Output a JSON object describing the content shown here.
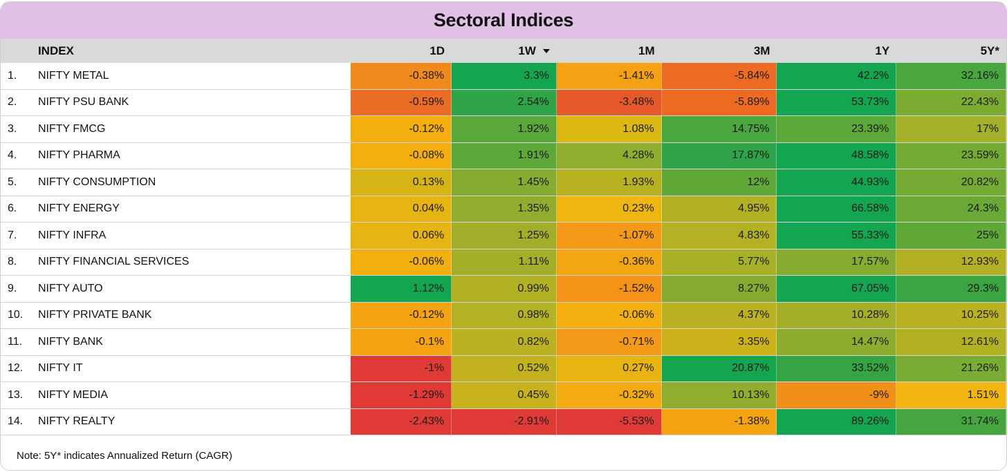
{
  "title": "Sectoral Indices",
  "headers": {
    "index": "INDEX",
    "d1": "1D",
    "w1": "1W",
    "m1": "1M",
    "m3": "3M",
    "y1": "1Y",
    "y5": "5Y*"
  },
  "sort_icon": "caret-down-icon",
  "rows": [
    {
      "num": "1.",
      "name": "NIFTY METAL",
      "d1": "-0.38%",
      "w1": "3.3%",
      "m1": "-1.41%",
      "m3": "-5.84%",
      "y1": "42.2%",
      "y5": "32.16%"
    },
    {
      "num": "2.",
      "name": "NIFTY PSU BANK",
      "d1": "-0.59%",
      "w1": "2.54%",
      "m1": "-3.48%",
      "m3": "-5.89%",
      "y1": "53.73%",
      "y5": "22.43%"
    },
    {
      "num": "3.",
      "name": "NIFTY FMCG",
      "d1": "-0.12%",
      "w1": "1.92%",
      "m1": "1.08%",
      "m3": "14.75%",
      "y1": "23.39%",
      "y5": "17%"
    },
    {
      "num": "4.",
      "name": "NIFTY PHARMA",
      "d1": "-0.08%",
      "w1": "1.91%",
      "m1": "4.28%",
      "m3": "17.87%",
      "y1": "48.58%",
      "y5": "23.59%"
    },
    {
      "num": "5.",
      "name": "NIFTY CONSUMPTION",
      "d1": "0.13%",
      "w1": "1.45%",
      "m1": "1.93%",
      "m3": "12%",
      "y1": "44.93%",
      "y5": "20.82%"
    },
    {
      "num": "6.",
      "name": "NIFTY ENERGY",
      "d1": "0.04%",
      "w1": "1.35%",
      "m1": "0.23%",
      "m3": "4.95%",
      "y1": "66.58%",
      "y5": "24.3%"
    },
    {
      "num": "7.",
      "name": "NIFTY INFRA",
      "d1": "0.06%",
      "w1": "1.25%",
      "m1": "-1.07%",
      "m3": "4.83%",
      "y1": "55.33%",
      "y5": "25%"
    },
    {
      "num": "8.",
      "name": "NIFTY FINANCIAL SERVICES",
      "d1": "-0.06%",
      "w1": "1.11%",
      "m1": "-0.36%",
      "m3": "5.77%",
      "y1": "17.57%",
      "y5": "12.93%"
    },
    {
      "num": "9.",
      "name": "NIFTY AUTO",
      "d1": "1.12%",
      "w1": "0.99%",
      "m1": "-1.52%",
      "m3": "8.27%",
      "y1": "67.05%",
      "y5": "29.3%"
    },
    {
      "num": "10.",
      "name": "NIFTY PRIVATE BANK",
      "d1": "-0.12%",
      "w1": "0.98%",
      "m1": "-0.06%",
      "m3": "4.37%",
      "y1": "10.28%",
      "y5": "10.25%"
    },
    {
      "num": "11.",
      "name": "NIFTY BANK",
      "d1": "-0.1%",
      "w1": "0.82%",
      "m1": "-0.71%",
      "m3": "3.35%",
      "y1": "14.47%",
      "y5": "12.61%"
    },
    {
      "num": "12.",
      "name": "NIFTY IT",
      "d1": "-1%",
      "w1": "0.52%",
      "m1": "0.27%",
      "m3": "20.87%",
      "y1": "33.52%",
      "y5": "21.26%"
    },
    {
      "num": "13.",
      "name": "NIFTY MEDIA",
      "d1": "-1.29%",
      "w1": "0.45%",
      "m1": "-0.32%",
      "m3": "10.13%",
      "y1": "-9%",
      "y5": "1.51%"
    },
    {
      "num": "14.",
      "name": "NIFTY REALTY",
      "d1": "-2.43%",
      "w1": "-2.91%",
      "m1": "-5.53%",
      "m3": "-1.38%",
      "y1": "89.26%",
      "y5": "31.74%"
    }
  ],
  "colors": {
    "title_bg": "#e2bfe6",
    "header_bg": "#d9d9d9",
    "cells": [
      [
        "#f08a1c",
        "#14a550",
        "#f4a114",
        "#ec6a22",
        "#14a550",
        "#4aa63e"
      ],
      [
        "#eb6c25",
        "#2fa347",
        "#e65a2a",
        "#ec6a22",
        "#14a550",
        "#7cab32"
      ],
      [
        "#f4ae10",
        "#5aa83b",
        "#dcb814",
        "#4aa63e",
        "#5ca93a",
        "#a2b02a"
      ],
      [
        "#f4ae10",
        "#5ea83a",
        "#8fad2e",
        "#2fa347",
        "#14a550",
        "#72aa34"
      ],
      [
        "#d7b415",
        "#86ab31",
        "#b8b222",
        "#62a839",
        "#14a550",
        "#74aa34"
      ],
      [
        "#e8b412",
        "#92ad2e",
        "#efb511",
        "#b2b124",
        "#14a550",
        "#6aa936"
      ],
      [
        "#e6b413",
        "#a2ae29",
        "#f49a18",
        "#b4b124",
        "#14a550",
        "#5fa838"
      ],
      [
        "#f4ae10",
        "#a4ae29",
        "#f4a513",
        "#a8b027",
        "#86ab31",
        "#b2b124"
      ],
      [
        "#14a550",
        "#b2b124",
        "#f49318",
        "#86ab31",
        "#14a550",
        "#3aa541"
      ],
      [
        "#f4a313",
        "#b3b124",
        "#f4b011",
        "#bab222",
        "#a4ae29",
        "#bab222"
      ],
      [
        "#f4a313",
        "#bab222",
        "#f49a18",
        "#ccb31c",
        "#8eac2f",
        "#b2b124"
      ],
      [
        "#e03a36",
        "#c3b21f",
        "#e8b412",
        "#16a54f",
        "#36a442",
        "#7aab33"
      ],
      [
        "#e03a36",
        "#c8b21e",
        "#f4aa12",
        "#90ad2f",
        "#f09018",
        "#f2b511"
      ],
      [
        "#e03a36",
        "#e03a36",
        "#e03a36",
        "#f4a313",
        "#14a550",
        "#45a63f"
      ]
    ]
  },
  "note": "Note: 5Y* indicates Annualized Return (CAGR)"
}
